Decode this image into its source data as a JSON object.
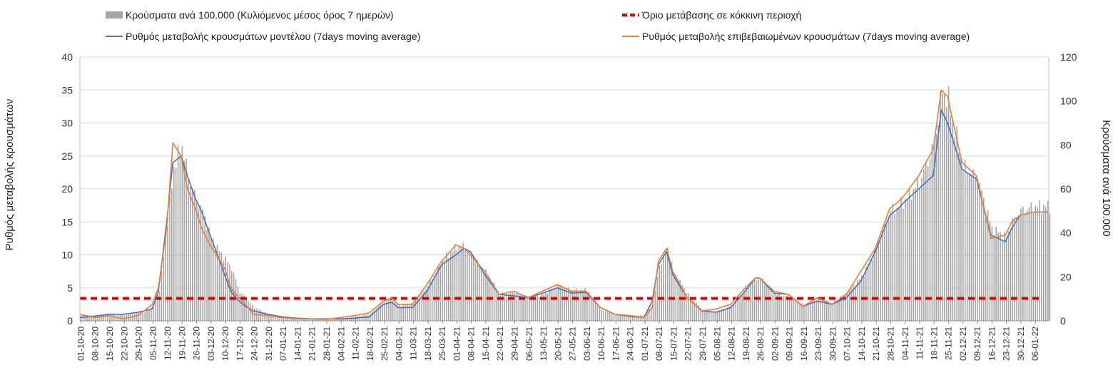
{
  "colors": {
    "bars": "#a6a6a6",
    "model": "#4472c4",
    "confirmed": "#ed7d31",
    "threshold": "#e00000",
    "grid": "#d9d9d9"
  },
  "legend": {
    "bars": "Κρούσματα ανά 100.000 (Κυλιόμενος μέσος όρος 7 ημερών)",
    "threshold": "Όριο μετάβασης σε κόκκινη περιοχή",
    "model": "Ρυθμός μεταβολής κρουσμάτων μοντέλου (7days moving average)",
    "confirmed": "Ρυθμός μεταβολής επιβεβαιωμένων κρουσμάτων (7days moving average)"
  },
  "chart_data": {
    "type": "bar",
    "title": "",
    "ylabel_left": "Ρυθμός μεταβολής κρουσμάτων",
    "ylabel_right": "Κρούσματα ανά 100.000",
    "y_left_range": [
      0,
      40
    ],
    "y_left_ticks": [
      "0",
      "5",
      "10",
      "15",
      "20",
      "25",
      "30",
      "35",
      "40"
    ],
    "y_right_range": [
      0,
      120
    ],
    "y_right_ticks": [
      "0",
      "20",
      "40",
      "60",
      "80",
      "100",
      "120"
    ],
    "grid": true,
    "legend_position": "top",
    "x_date_range": [
      "2020-10-01",
      "2022-01-13"
    ],
    "x_tick_labels": [
      "01-10-20",
      "08-10-20",
      "15-10-20",
      "22-10-20",
      "29-10-20",
      "05-11-20",
      "12-11-20",
      "19-11-20",
      "26-11-20",
      "03-12-20",
      "10-12-20",
      "17-12-20",
      "24-12-20",
      "31-12-20",
      "07-01-21",
      "14-01-21",
      "21-01-21",
      "28-01-21",
      "04-02-21",
      "11-02-21",
      "18-02-21",
      "25-02-21",
      "04-03-21",
      "11-03-21",
      "18-03-21",
      "25-03-21",
      "01-04-21",
      "08-04-21",
      "15-04-21",
      "22-04-21",
      "29-04-21",
      "06-05-21",
      "13-05-21",
      "20-05-21",
      "27-05-21",
      "03-06-21",
      "10-06-21",
      "17-06-21",
      "24-06-21",
      "01-07-21",
      "08-07-21",
      "15-07-21",
      "22-07-21",
      "29-07-21",
      "05-08-21",
      "12-08-21",
      "19-08-21",
      "26-08-21",
      "02-09-21",
      "09-09-21",
      "16-09-21",
      "23-09-21",
      "30-09-21",
      "07-10-21",
      "14-10-21",
      "21-10-21",
      "28-10-21",
      "04-11-21",
      "11-11-21",
      "18-11-21",
      "25-11-21",
      "02-12-21",
      "09-12-21",
      "16-12-21",
      "23-12-21",
      "30-12-21",
      "06-01-22"
    ],
    "threshold": {
      "name": "Όριο μετάβασης σε κόκκινη περιοχή",
      "axis": "left",
      "value": 3.4
    },
    "series": [
      {
        "name": "Κρούσματα ανά 100.000 (Κυλιόμενος μέσος όρος 7 ημερών)",
        "type": "bar",
        "axis": "right",
        "x": [
          "2020-10-01",
          "2020-10-08",
          "2020-10-15",
          "2020-10-22",
          "2020-10-29",
          "2020-11-01",
          "2020-11-05",
          "2020-11-08",
          "2020-11-12",
          "2020-11-15",
          "2020-11-19",
          "2020-11-22",
          "2020-11-26",
          "2020-11-29",
          "2020-12-03",
          "2020-12-06",
          "2020-12-10",
          "2020-12-13",
          "2020-12-17",
          "2020-12-20",
          "2020-12-24",
          "2020-12-31",
          "2021-01-07",
          "2021-01-14",
          "2021-01-21",
          "2021-01-28",
          "2021-02-04",
          "2021-02-11",
          "2021-02-18",
          "2021-02-25",
          "2021-03-01",
          "2021-03-04",
          "2021-03-11",
          "2021-03-18",
          "2021-03-25",
          "2021-04-01",
          "2021-04-05",
          "2021-04-08",
          "2021-04-15",
          "2021-04-22",
          "2021-04-29",
          "2021-05-06",
          "2021-05-13",
          "2021-05-20",
          "2021-05-27",
          "2021-06-03",
          "2021-06-10",
          "2021-06-17",
          "2021-06-24",
          "2021-07-01",
          "2021-07-05",
          "2021-07-08",
          "2021-07-12",
          "2021-07-15",
          "2021-07-22",
          "2021-07-29",
          "2021-08-05",
          "2021-08-12",
          "2021-08-19",
          "2021-08-24",
          "2021-08-26",
          "2021-09-02",
          "2021-09-09",
          "2021-09-16",
          "2021-09-23",
          "2021-09-30",
          "2021-10-07",
          "2021-10-14",
          "2021-10-21",
          "2021-10-28",
          "2021-11-01",
          "2021-11-04",
          "2021-11-11",
          "2021-11-18",
          "2021-11-22",
          "2021-11-25",
          "2021-12-02",
          "2021-12-09",
          "2021-12-16",
          "2021-12-23",
          "2021-12-26",
          "2021-12-30",
          "2022-01-06",
          "2022-01-13"
        ],
        "values": [
          2.5,
          2.5,
          3.0,
          2.5,
          4.0,
          4.0,
          7.0,
          14.0,
          45.0,
          70.0,
          80.0,
          65.0,
          55.0,
          50.0,
          38.0,
          33.0,
          28.0,
          24.0,
          13.0,
          10.0,
          6.0,
          3.0,
          2.0,
          1.0,
          1.0,
          0.5,
          1.0,
          2.0,
          3.0,
          9.0,
          10.0,
          7.0,
          8.0,
          16.0,
          27.0,
          34.0,
          34.0,
          30.0,
          22.0,
          12.0,
          13.0,
          11.0,
          12.0,
          16.0,
          14.0,
          14.0,
          5.0,
          3.0,
          2.5,
          2.5,
          8.0,
          25.0,
          33.0,
          22.0,
          12.0,
          5.0,
          4.0,
          7.0,
          15.0,
          19.0,
          19.0,
          12.0,
          11.0,
          7.0,
          10.0,
          8.0,
          13.0,
          20.0,
          33.0,
          50.0,
          52.0,
          55.0,
          63.0,
          80.0,
          105.0,
          100.0,
          70.0,
          65.0,
          42.0,
          38.0,
          45.0,
          50.0,
          52.0,
          52.0
        ]
      },
      {
        "name": "Ρυθμός μεταβολής κρουσμάτων μοντέλου (7days moving average)",
        "type": "line",
        "axis": "left",
        "x": [
          "2020-10-01",
          "2020-10-08",
          "2020-10-15",
          "2020-10-22",
          "2020-10-29",
          "2020-11-01",
          "2020-11-05",
          "2020-11-08",
          "2020-11-12",
          "2020-11-15",
          "2020-11-19",
          "2020-11-22",
          "2020-11-26",
          "2020-11-29",
          "2020-12-03",
          "2020-12-06",
          "2020-12-10",
          "2020-12-13",
          "2020-12-17",
          "2020-12-20",
          "2020-12-24",
          "2020-12-31",
          "2021-01-07",
          "2021-01-14",
          "2021-01-21",
          "2021-01-28",
          "2021-02-04",
          "2021-02-11",
          "2021-02-18",
          "2021-02-25",
          "2021-03-01",
          "2021-03-04",
          "2021-03-11",
          "2021-03-18",
          "2021-03-25",
          "2021-04-01",
          "2021-04-05",
          "2021-04-08",
          "2021-04-15",
          "2021-04-22",
          "2021-04-29",
          "2021-05-06",
          "2021-05-13",
          "2021-05-20",
          "2021-05-27",
          "2021-06-03",
          "2021-06-10",
          "2021-06-17",
          "2021-06-24",
          "2021-07-01",
          "2021-07-05",
          "2021-07-08",
          "2021-07-12",
          "2021-07-15",
          "2021-07-22",
          "2021-07-29",
          "2021-08-05",
          "2021-08-12",
          "2021-08-19",
          "2021-08-24",
          "2021-08-26",
          "2021-09-02",
          "2021-09-09",
          "2021-09-16",
          "2021-09-23",
          "2021-09-30",
          "2021-10-07",
          "2021-10-14",
          "2021-10-21",
          "2021-10-28",
          "2021-11-01",
          "2021-11-04",
          "2021-11-11",
          "2021-11-18",
          "2021-11-22",
          "2021-11-25",
          "2021-12-02",
          "2021-12-09",
          "2021-12-16",
          "2021-12-23",
          "2021-12-26",
          "2021-12-30",
          "2022-01-06",
          "2022-01-13"
        ],
        "values": [
          0.5,
          0.7,
          1.0,
          1.0,
          1.3,
          1.5,
          1.8,
          4.5,
          15.0,
          24.0,
          25.0,
          22.0,
          18.5,
          16.5,
          13.0,
          10.5,
          7.0,
          4.5,
          3.0,
          2.2,
          1.5,
          1.0,
          0.6,
          0.4,
          0.3,
          0.3,
          0.3,
          0.4,
          0.6,
          2.5,
          2.8,
          2.0,
          2.0,
          4.5,
          8.5,
          10.0,
          11.0,
          10.5,
          7.0,
          4.0,
          3.8,
          3.5,
          4.2,
          5.0,
          4.2,
          4.3,
          2.0,
          1.0,
          0.7,
          0.5,
          3.0,
          8.5,
          10.5,
          7.0,
          3.5,
          1.5,
          1.3,
          2.0,
          4.5,
          6.5,
          6.5,
          4.2,
          4.0,
          2.2,
          3.0,
          2.5,
          3.5,
          6.0,
          10.5,
          16.0,
          17.0,
          18.0,
          20.0,
          22.0,
          32.0,
          30.0,
          23.0,
          21.5,
          13.0,
          12.0,
          14.0,
          16.0,
          16.5,
          16.5
        ]
      },
      {
        "name": "Ρυθμός μεταβολής επιβεβαιωμένων κρουσμάτων (7days moving average)",
        "type": "line",
        "axis": "left",
        "x": [
          "2020-10-01",
          "2020-10-08",
          "2020-10-15",
          "2020-10-22",
          "2020-10-29",
          "2020-11-01",
          "2020-11-05",
          "2020-11-08",
          "2020-11-12",
          "2020-11-15",
          "2020-11-19",
          "2020-11-22",
          "2020-11-26",
          "2020-11-29",
          "2020-12-03",
          "2020-12-06",
          "2020-12-10",
          "2020-12-13",
          "2020-12-17",
          "2020-12-20",
          "2020-12-24",
          "2020-12-31",
          "2021-01-07",
          "2021-01-14",
          "2021-01-21",
          "2021-01-28",
          "2021-02-04",
          "2021-02-11",
          "2021-02-18",
          "2021-02-25",
          "2021-03-01",
          "2021-03-04",
          "2021-03-11",
          "2021-03-18",
          "2021-03-25",
          "2021-04-01",
          "2021-04-05",
          "2021-04-08",
          "2021-04-15",
          "2021-04-22",
          "2021-04-29",
          "2021-05-06",
          "2021-05-13",
          "2021-05-20",
          "2021-05-27",
          "2021-06-03",
          "2021-06-10",
          "2021-06-17",
          "2021-06-24",
          "2021-07-01",
          "2021-07-05",
          "2021-07-08",
          "2021-07-12",
          "2021-07-15",
          "2021-07-22",
          "2021-07-29",
          "2021-08-05",
          "2021-08-12",
          "2021-08-19",
          "2021-08-24",
          "2021-08-26",
          "2021-09-02",
          "2021-09-09",
          "2021-09-16",
          "2021-09-23",
          "2021-09-30",
          "2021-10-07",
          "2021-10-14",
          "2021-10-21",
          "2021-10-28",
          "2021-11-01",
          "2021-11-04",
          "2021-11-11",
          "2021-11-18",
          "2021-11-22",
          "2021-11-25",
          "2021-12-02",
          "2021-12-09",
          "2021-12-16",
          "2021-12-23",
          "2021-12-26",
          "2021-12-30",
          "2022-01-06",
          "2022-01-13"
        ],
        "values": [
          1.0,
          0.5,
          0.8,
          0.3,
          0.8,
          1.5,
          2.5,
          5.0,
          14.0,
          27.0,
          25.0,
          20.0,
          17.0,
          14.0,
          11.5,
          10.0,
          8.0,
          5.0,
          3.5,
          2.5,
          1.0,
          0.8,
          0.5,
          0.3,
          0.3,
          0.2,
          0.5,
          0.8,
          1.2,
          3.0,
          3.5,
          2.5,
          2.5,
          5.5,
          9.0,
          11.5,
          11.0,
          10.0,
          7.5,
          4.0,
          4.5,
          3.5,
          4.5,
          5.5,
          4.5,
          4.5,
          2.0,
          1.0,
          0.8,
          0.5,
          2.0,
          9.0,
          11.0,
          7.5,
          3.5,
          1.5,
          1.8,
          2.5,
          5.0,
          6.5,
          6.5,
          4.5,
          4.0,
          2.2,
          3.5,
          2.5,
          4.0,
          7.5,
          11.0,
          17.0,
          18.0,
          19.0,
          22.0,
          26.0,
          35.0,
          34.0,
          24.0,
          22.0,
          12.5,
          13.0,
          15.0,
          16.0,
          16.5,
          16.5
        ]
      }
    ]
  }
}
